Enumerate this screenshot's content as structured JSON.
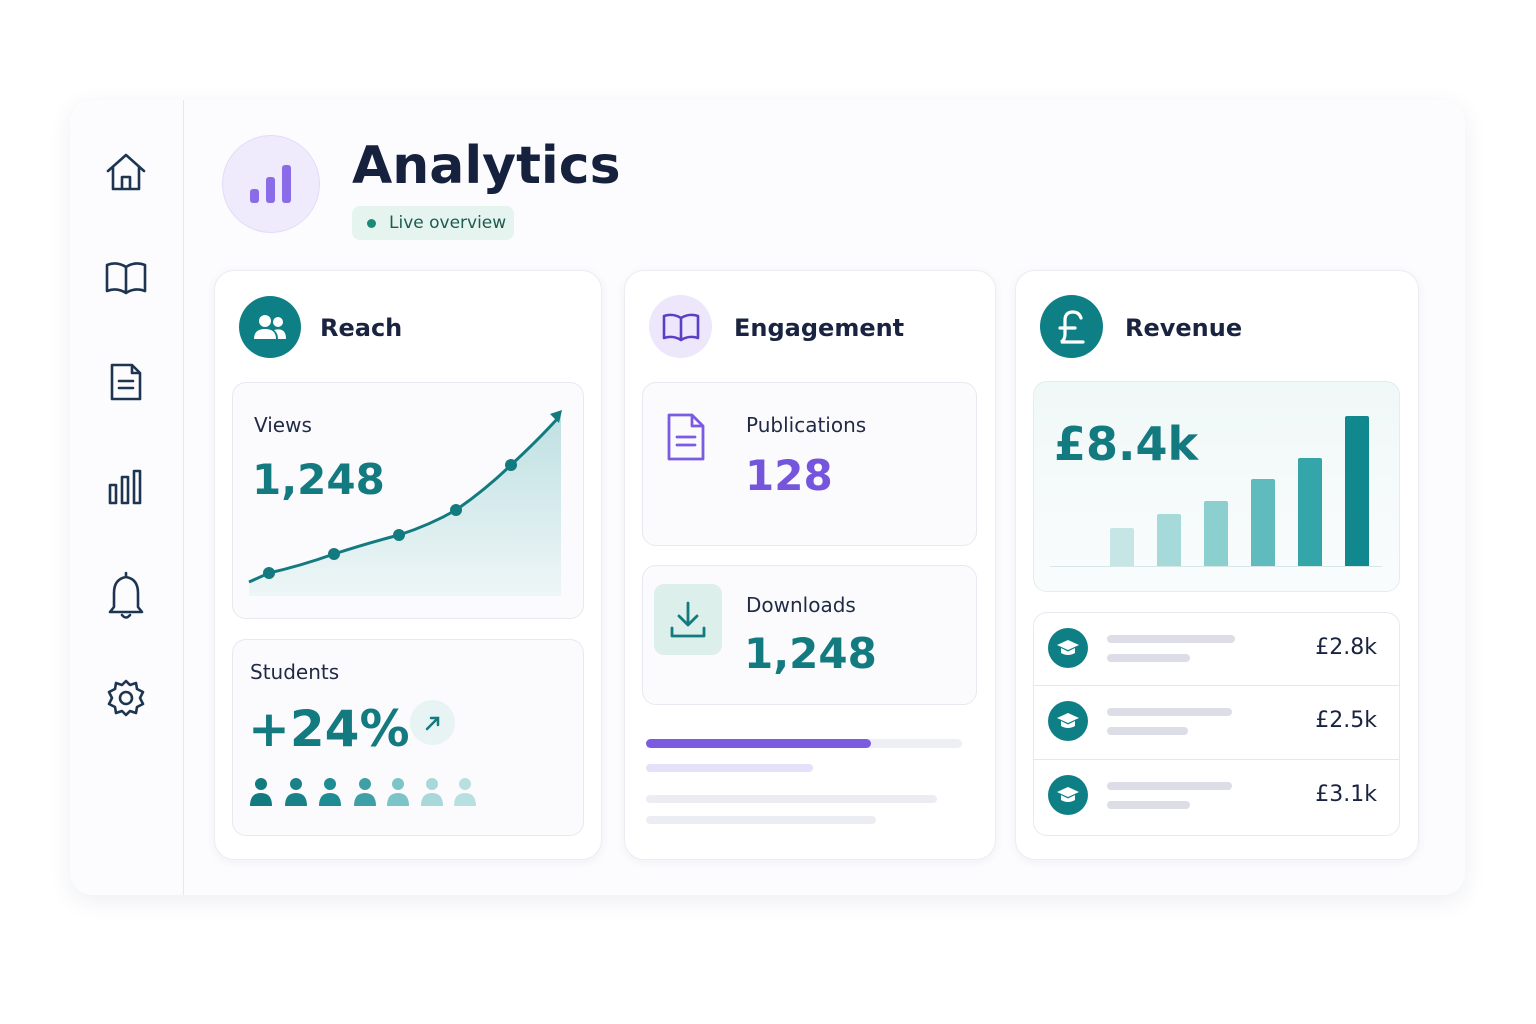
{
  "header": {
    "title": "Analytics",
    "status": "Live overview"
  },
  "cards": [
    {
      "title": "Reach",
      "tiles": [
        {
          "label": "Views",
          "value": "1,248"
        },
        {
          "label": "Students",
          "value": "+24%"
        }
      ]
    },
    {
      "title": "Engagement",
      "tiles": [
        {
          "label": "Publications",
          "value": "128"
        },
        {
          "label": "Downloads",
          "value": "1,248"
        }
      ]
    },
    {
      "title": "Revenue",
      "total": "£8.4k",
      "items": [
        "£2.8k",
        "£2.5k",
        "£3.1k"
      ]
    }
  ]
}
